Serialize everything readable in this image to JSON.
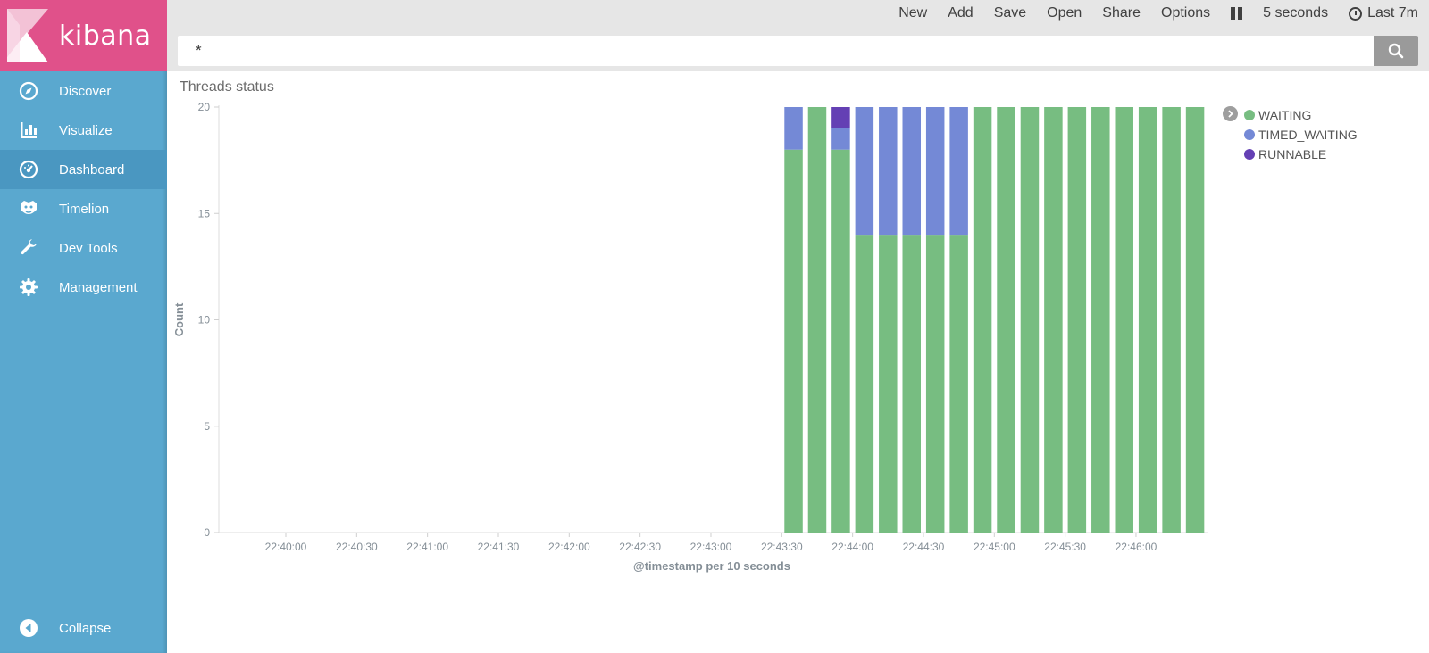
{
  "app": {
    "logo_text": "kibana",
    "brand_color": "#e0518a",
    "sidebar_color": "#5aa8cf"
  },
  "sidebar": {
    "items": [
      {
        "label": "Discover",
        "icon": "compass-icon"
      },
      {
        "label": "Visualize",
        "icon": "bar-chart-icon"
      },
      {
        "label": "Dashboard",
        "icon": "dashboard-icon",
        "active": true
      },
      {
        "label": "Timelion",
        "icon": "timelion-icon"
      },
      {
        "label": "Dev Tools",
        "icon": "wrench-icon"
      },
      {
        "label": "Management",
        "icon": "gear-icon"
      }
    ],
    "collapse_label": "Collapse"
  },
  "topmenu": {
    "new": "New",
    "add": "Add",
    "save": "Save",
    "open": "Open",
    "share": "Share",
    "options": "Options",
    "refresh_interval": "5 seconds",
    "time_range": "Last 7m"
  },
  "search": {
    "value": "*"
  },
  "panel": {
    "title": "Threads status"
  },
  "chart_data": {
    "type": "bar",
    "stacked": true,
    "xlabel": "@timestamp per 10 seconds",
    "ylabel": "Count",
    "ylim": [
      0,
      20
    ],
    "yticks": [
      0,
      5,
      10,
      15,
      20
    ],
    "x_tick_labels": [
      "22:40:00",
      "22:40:30",
      "22:41:00",
      "22:41:30",
      "22:42:00",
      "22:42:30",
      "22:43:00",
      "22:43:30",
      "22:44:00",
      "22:44:30",
      "22:45:00",
      "22:45:30",
      "22:46:00"
    ],
    "categories": [
      "22:43:30",
      "22:43:40",
      "22:43:50",
      "22:44:00",
      "22:44:10",
      "22:44:20",
      "22:44:30",
      "22:44:40",
      "22:44:50",
      "22:45:00",
      "22:45:10",
      "22:45:20",
      "22:45:30",
      "22:45:40",
      "22:45:50",
      "22:46:00",
      "22:46:10",
      "22:46:20"
    ],
    "series": [
      {
        "name": "WAITING",
        "color": "#77bd81",
        "values": [
          18,
          20,
          18,
          14,
          14,
          14,
          14,
          14,
          20,
          20,
          20,
          20,
          20,
          20,
          20,
          20,
          20,
          20
        ]
      },
      {
        "name": "TIMED_WAITING",
        "color": "#7489d6",
        "values": [
          2,
          0,
          1,
          6,
          6,
          6,
          6,
          6,
          0,
          0,
          0,
          0,
          0,
          0,
          0,
          0,
          0,
          0
        ]
      },
      {
        "name": "RUNNABLE",
        "color": "#6440b4",
        "values": [
          0,
          0,
          1,
          0,
          0,
          0,
          0,
          0,
          0,
          0,
          0,
          0,
          0,
          0,
          0,
          0,
          0,
          0
        ]
      }
    ],
    "grid": false,
    "legend": "right"
  }
}
